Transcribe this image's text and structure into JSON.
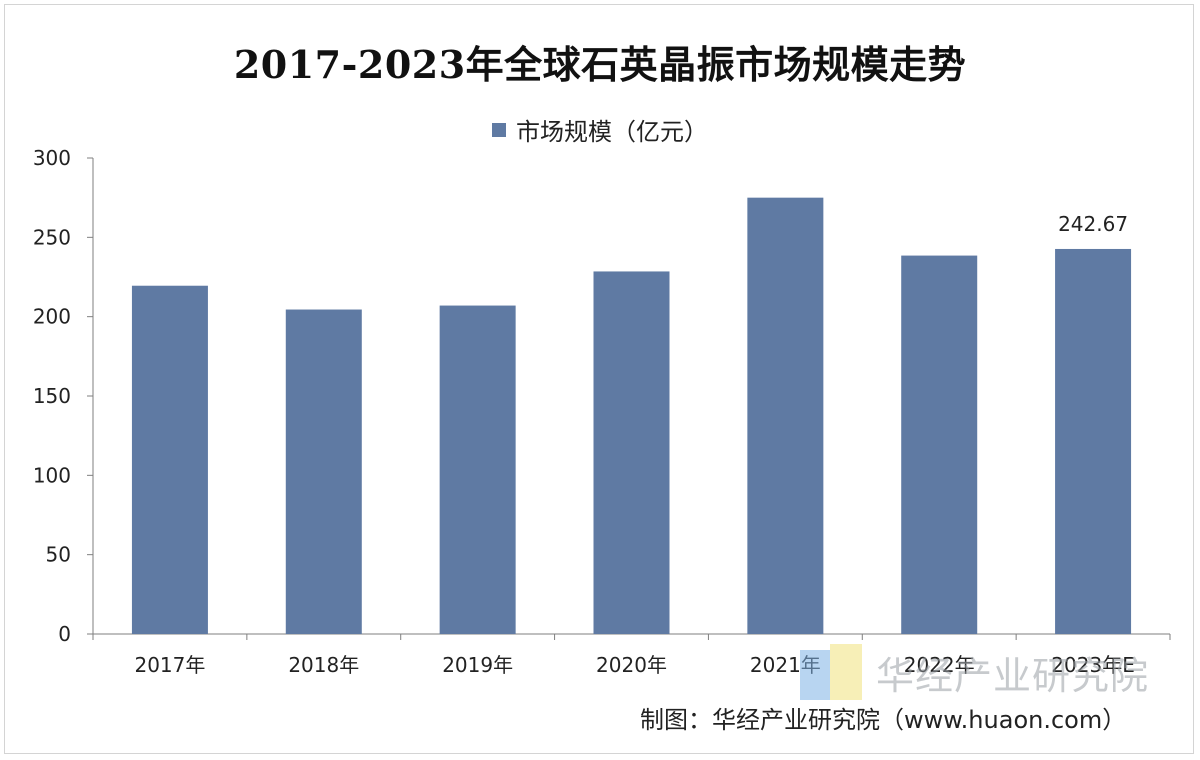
{
  "chart_data": {
    "type": "bar",
    "title": "2017-2023年全球石英晶振市场规模走势",
    "categories": [
      "2017年",
      "2018年",
      "2019年",
      "2020年",
      "2021年",
      "2022年",
      "2023年E"
    ],
    "series": [
      {
        "name": "市场规模（亿元）",
        "values": [
          219.5,
          204.5,
          207,
          228.5,
          275,
          238.5,
          242.67
        ]
      }
    ],
    "y_ticks": [
      "0",
      "50",
      "100",
      "150",
      "200",
      "250",
      "300"
    ],
    "ylim": [
      0,
      300
    ],
    "data_labels": [
      null,
      null,
      null,
      null,
      null,
      null,
      "242.67"
    ],
    "legend_position": "top-center",
    "grid": false,
    "colors": {
      "bar": "#5f7aa3",
      "axis": "#7f7f7f"
    }
  },
  "source_text": "制图：华经产业研究院（www.huaon.com）",
  "watermark_text": "华经产业研究院"
}
